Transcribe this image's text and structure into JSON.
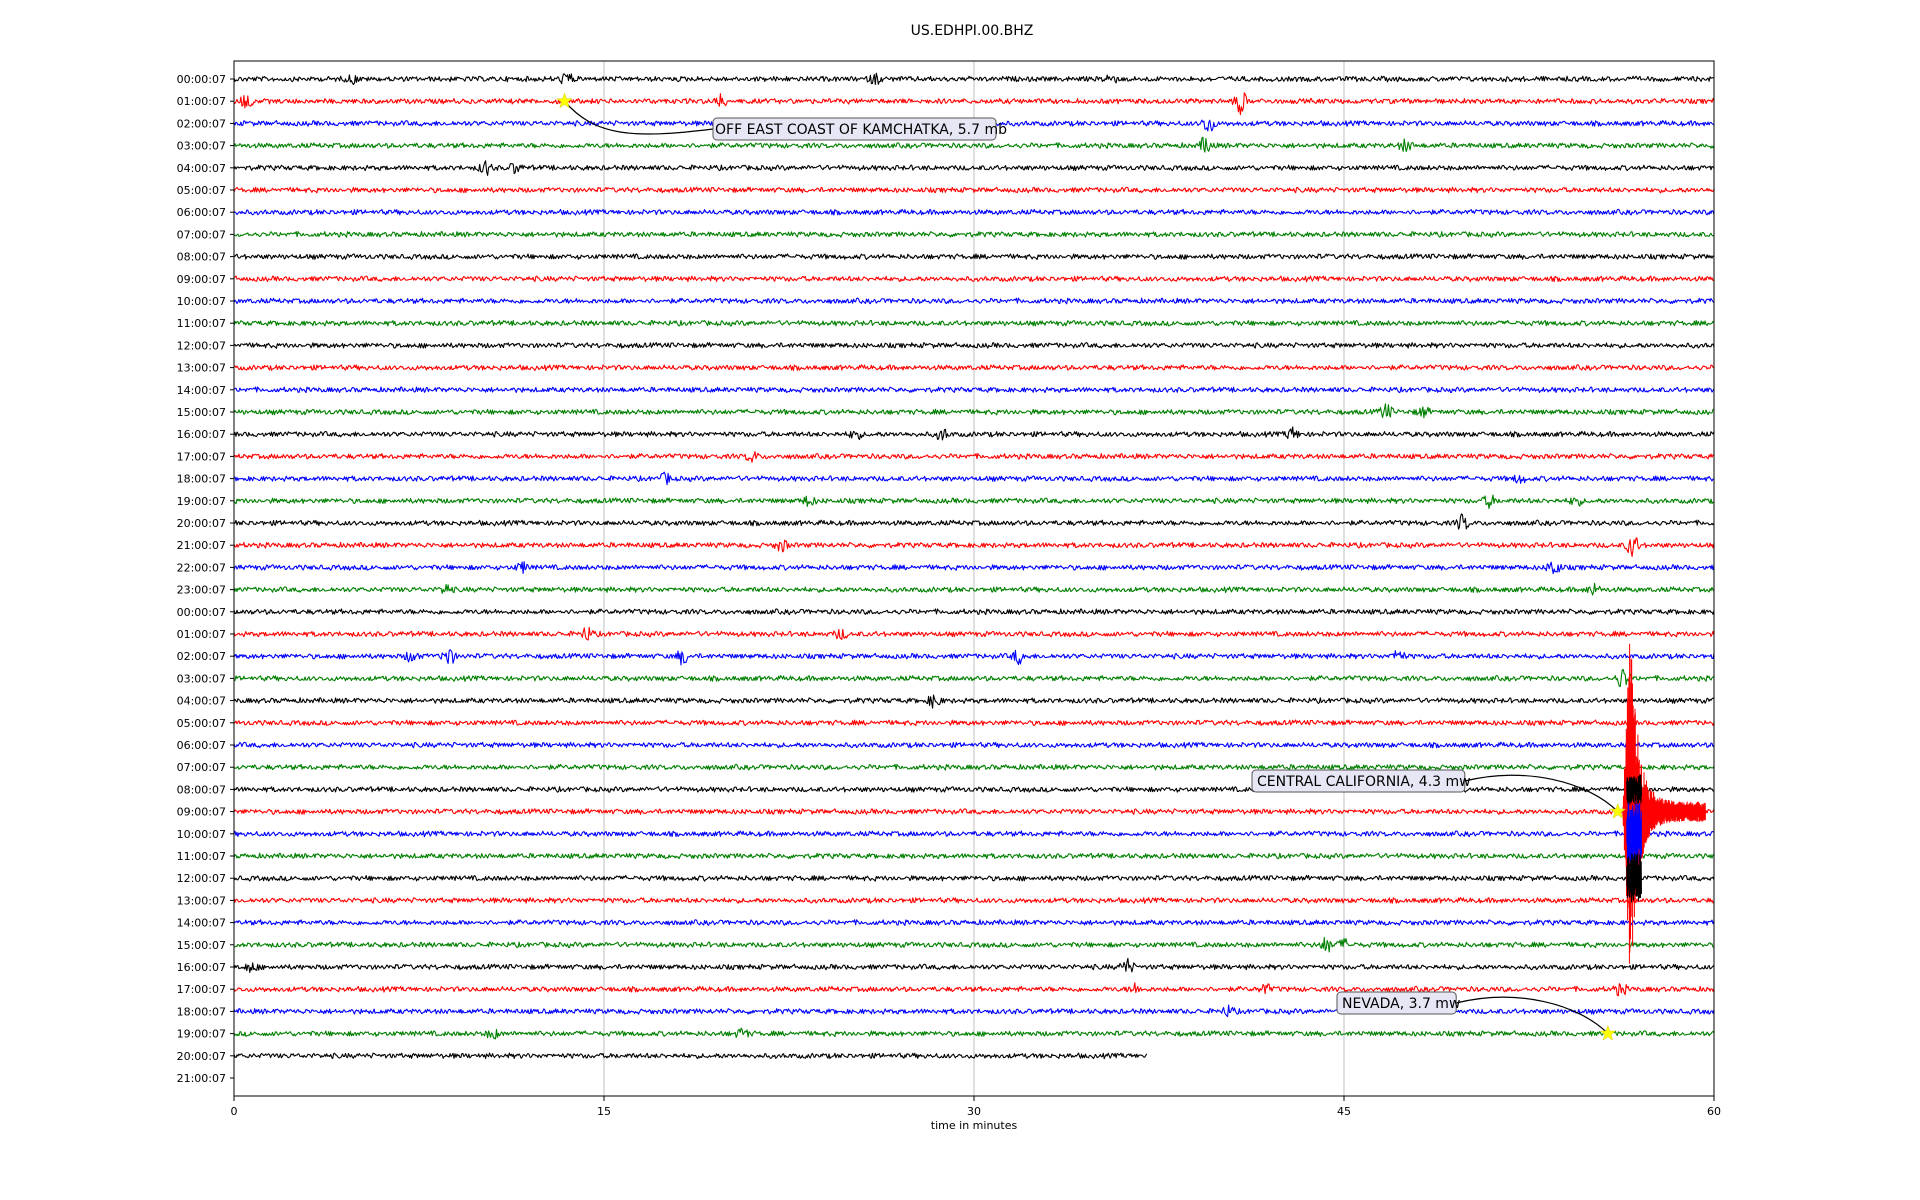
{
  "chart_data": {
    "type": "line",
    "title": "US.EDHPI.00.BHZ",
    "xlabel": "time in minutes",
    "ylabel": "",
    "xlim": [
      0,
      60
    ],
    "x_ticks": [
      "0",
      "15",
      "30",
      "45",
      "60"
    ],
    "grid": "vertical",
    "row_labels": [
      "00:00:07",
      "01:00:07",
      "02:00:07",
      "03:00:07",
      "04:00:07",
      "05:00:07",
      "06:00:07",
      "07:00:07",
      "08:00:07",
      "09:00:07",
      "10:00:07",
      "11:00:07",
      "12:00:07",
      "13:00:07",
      "14:00:07",
      "15:00:07",
      "16:00:07",
      "17:00:07",
      "18:00:07",
      "19:00:07",
      "20:00:07",
      "21:00:07",
      "22:00:07",
      "23:00:07",
      "00:00:07",
      "01:00:07",
      "02:00:07",
      "03:00:07",
      "04:00:07",
      "05:00:07",
      "06:00:07",
      "07:00:07",
      "08:00:07",
      "09:00:07",
      "10:00:07",
      "11:00:07",
      "12:00:07",
      "13:00:07",
      "14:00:07",
      "15:00:07",
      "16:00:07",
      "17:00:07",
      "18:00:07",
      "19:00:07",
      "20:00:07",
      "21:00:07"
    ],
    "trace_colors": [
      "#000000",
      "#ff0000",
      "#0000ff",
      "#008000"
    ],
    "last_trace_end_minutes": 37,
    "events": [
      {
        "label": "OFF EAST COAST OF KAMCHATKA, 5.7 mb",
        "row": 1,
        "minute": 13.4
      },
      {
        "label": "CENTRAL CALIFORNIA, 4.3 mw",
        "row": 33,
        "minute": 56.1
      },
      {
        "label": "NEVADA, 3.7 mw",
        "row": 43,
        "minute": 55.7
      }
    ]
  }
}
